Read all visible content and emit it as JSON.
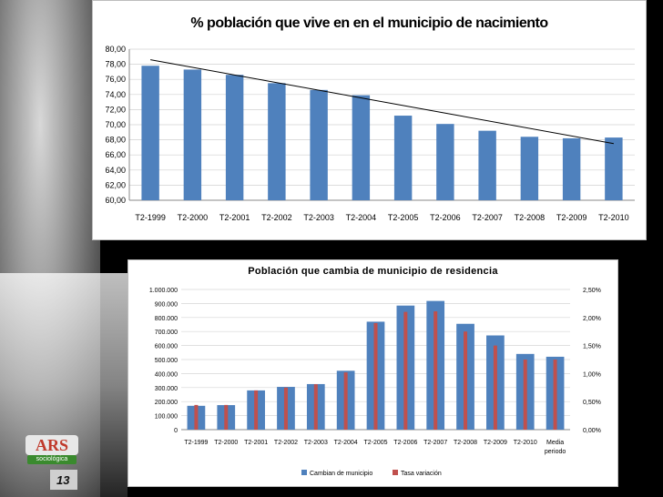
{
  "chart_data": [
    {
      "type": "bar",
      "title": "% población que vive en en el municipio de nacimiento",
      "categories": [
        "T2-1999",
        "T2-2000",
        "T2-2001",
        "T2-2002",
        "T2-2003",
        "T2-2004",
        "T2-2005",
        "T2-2006",
        "T2-2007",
        "T2-2008",
        "T2-2009",
        "T2-2010"
      ],
      "values": [
        77.8,
        77.3,
        76.6,
        75.5,
        74.6,
        73.9,
        71.2,
        70.1,
        69.2,
        68.4,
        68.2,
        68.3
      ],
      "trendline": {
        "start": 78.6,
        "end": 67.5
      },
      "ylim": [
        60,
        80
      ],
      "yticks": [
        "60,00",
        "62,00",
        "64,00",
        "66,00",
        "68,00",
        "70,00",
        "72,00",
        "74,00",
        "76,00",
        "78,00",
        "80,00"
      ],
      "bar_color": "#4f81bd",
      "trend_color": "#000000"
    },
    {
      "type": "bar",
      "title": "Población que cambia de municipio de residencia",
      "categories": [
        "T2-1999",
        "T2-2000",
        "T2-2001",
        "T2-2002",
        "T2-2003",
        "T2-2004",
        "T2-2005",
        "T2-2006",
        "T2-2007",
        "T2-2008",
        "T2-2009",
        "T2-2010",
        "Media periodo"
      ],
      "series": [
        {
          "name": "Cambian de municipio",
          "axis": "left",
          "color": "#4f81bd",
          "values": [
            170000,
            175000,
            280000,
            305000,
            325000,
            420000,
            770000,
            885000,
            918000,
            755000,
            672000,
            540000,
            520000
          ]
        },
        {
          "name": "Tasa variación",
          "axis": "right",
          "color": "#c0504d",
          "values": [
            0.44,
            0.44,
            0.7,
            0.75,
            0.81,
            1.02,
            1.9,
            2.1,
            2.11,
            1.75,
            1.5,
            1.25,
            1.25
          ]
        }
      ],
      "ylim_left": [
        0,
        1000000
      ],
      "ylim_right": [
        0,
        2.5
      ],
      "yticks_left": [
        "0",
        "100.000",
        "200.000",
        "300.000",
        "400.000",
        "500.000",
        "600.000",
        "700.000",
        "800.000",
        "900.000",
        "1.000.000"
      ],
      "yticks_right": [
        "0,00%",
        "0,50%",
        "1,00%",
        "1,50%",
        "2,00%",
        "2,50%"
      ],
      "legend_position": "bottom"
    }
  ],
  "slide": {
    "number": "13",
    "logo_text": "ARS",
    "logo_sub": "sociológica"
  }
}
